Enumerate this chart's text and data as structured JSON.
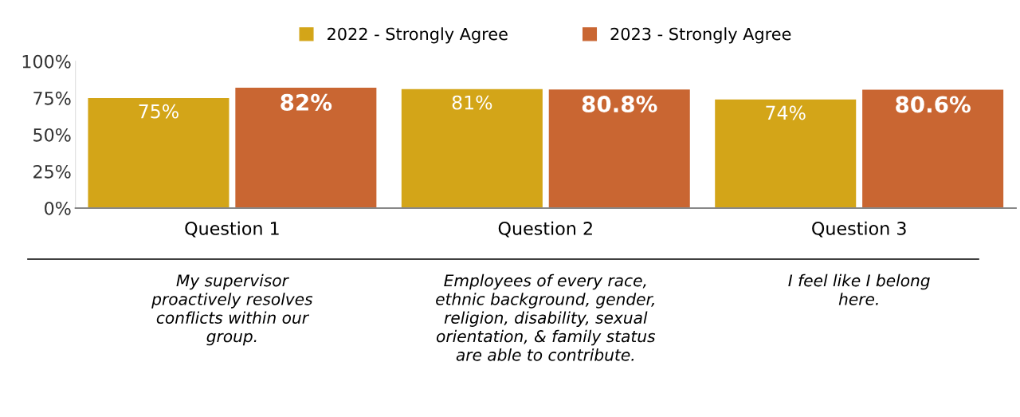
{
  "chart_data": {
    "type": "bar",
    "categories": [
      "Question 1",
      "Question 2",
      "Question 3"
    ],
    "series": [
      {
        "name": "2022 - Strongly Agree",
        "color": "#d3a518",
        "values": [
          75,
          81,
          74
        ],
        "value_labels": [
          "75%",
          "81%",
          "74%"
        ]
      },
      {
        "name": "2023 - Strongly Agree",
        "color": "#c96632",
        "values": [
          82,
          80.8,
          80.6
        ],
        "value_labels": [
          "82%",
          "80.8%",
          "80.6%"
        ]
      }
    ],
    "ylim": [
      0,
      100
    ],
    "yticks": [
      {
        "value": 0,
        "label": "0%"
      },
      {
        "value": 25,
        "label": "25%"
      },
      {
        "value": 50,
        "label": "50%"
      },
      {
        "value": 75,
        "label": "75%"
      },
      {
        "value": 100,
        "label": "100%"
      }
    ],
    "grid": false,
    "legend": "top",
    "annotations": [
      "My supervisor\nproactively resolves\nconflicts within our\ngroup.",
      "Employees of every race,\nethnic background, gender,\nreligion, disability, sexual\norientation, & family status\nare able to contribute.",
      "I feel like I belong\nhere."
    ]
  }
}
